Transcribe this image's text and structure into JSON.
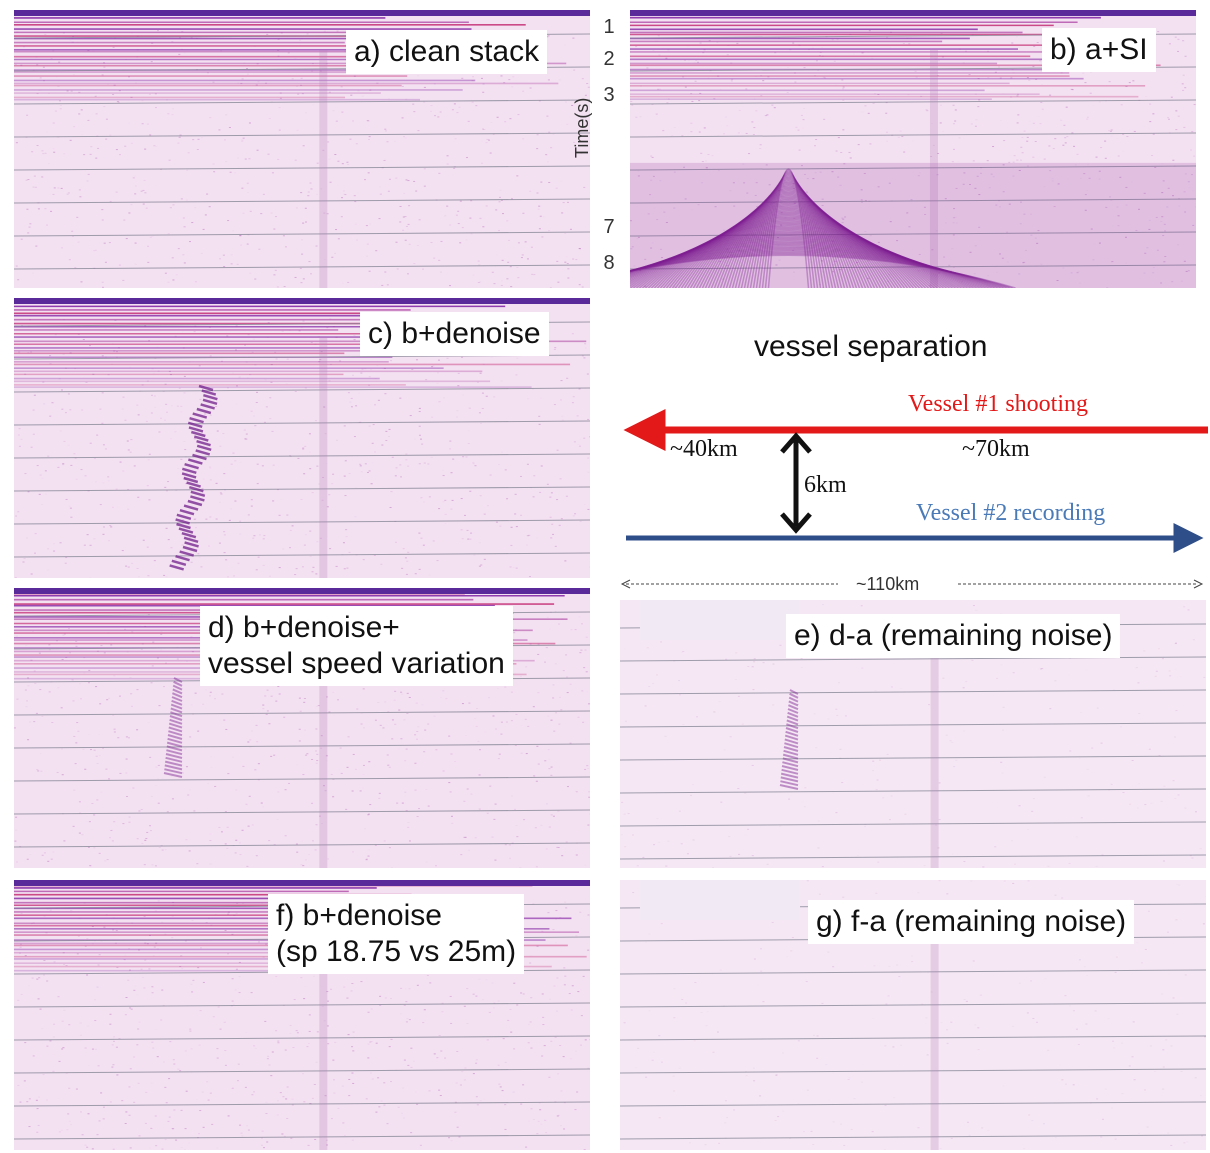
{
  "panels": {
    "a": {
      "label": "a) clean stack"
    },
    "b": {
      "label": "b) a+SI"
    },
    "c": {
      "label": "c) b+denoise"
    },
    "d": {
      "label": "d) b+denoise+\nvessel speed variation"
    },
    "e": {
      "label": "e) d-a (remaining noise)"
    },
    "f": {
      "label": "f) b+denoise\n(sp 18.75 vs 25m)"
    },
    "g": {
      "label": "g) f-a (remaining noise)"
    }
  },
  "time_axis": {
    "title": "Time(s)",
    "ticks": [
      "1",
      "2",
      "3",
      "7",
      "8"
    ]
  },
  "diagram": {
    "title": "vessel separation",
    "vessel1": "Vessel #1 shooting",
    "vessel2": "Vessel #2 recording",
    "dist_left": "~40km",
    "dist_right": "~70km",
    "separation": "6km",
    "total": "~110km",
    "colors": {
      "vessel1": "#e31818",
      "vessel2": "#2e4e8a",
      "vessel1_text": "#e31818",
      "vessel2_text": "#4a7ab8"
    }
  }
}
